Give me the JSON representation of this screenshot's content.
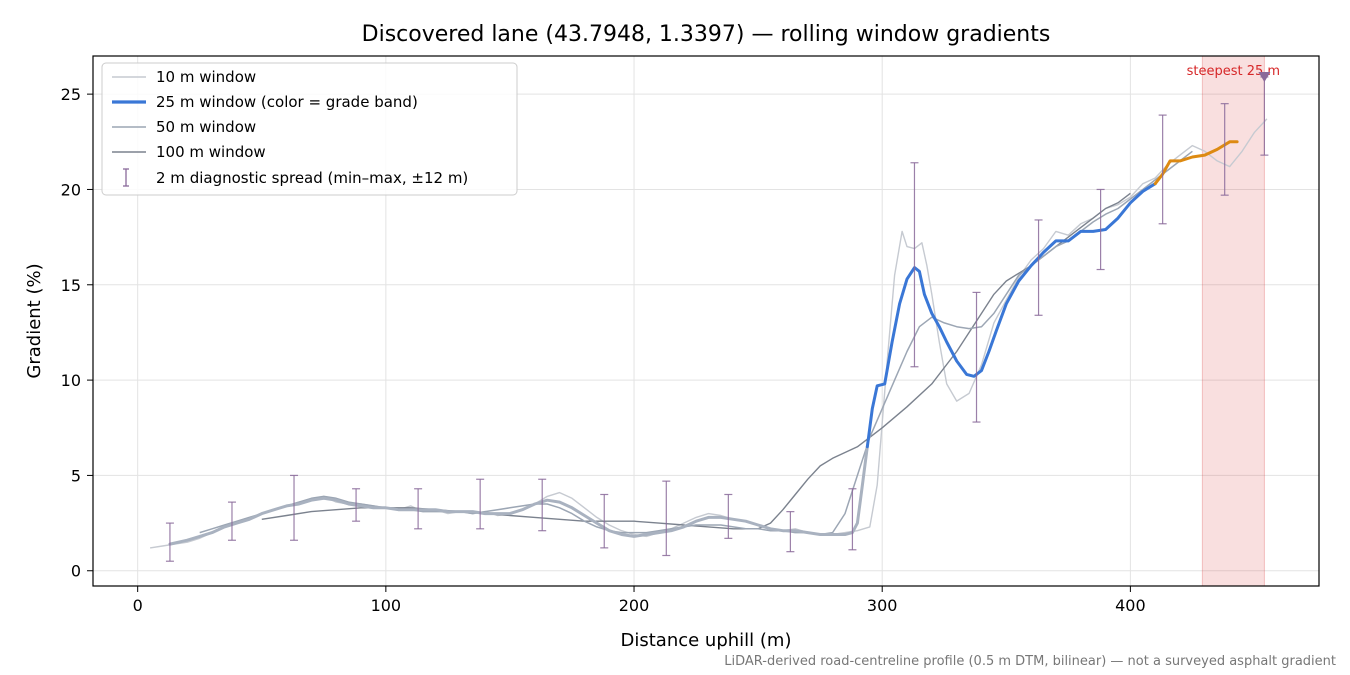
{
  "chart_data": {
    "type": "line",
    "title": "Discovered lane (43.7948, 1.3397) — rolling window gradients",
    "xlabel": "Distance uphill (m)",
    "ylabel": "Gradient (%)",
    "xlim": [
      -18,
      476
    ],
    "ylim": [
      -0.8,
      27
    ],
    "xticks": [
      0,
      100,
      200,
      300,
      400
    ],
    "yticks": [
      0,
      5,
      10,
      15,
      20,
      25
    ],
    "xtick_labels": [
      "0",
      "100",
      "200",
      "300",
      "400"
    ],
    "ytick_labels": [
      "0",
      "5",
      "10",
      "15",
      "20",
      "25"
    ],
    "grid": true,
    "legend_position": "top-left",
    "footnote": "LiDAR-derived road-centreline profile (0.5 m DTM, bilinear) — not a surveyed asphalt gradient",
    "highlight_region": {
      "x0": 429,
      "x1": 454,
      "label": "steepest 25 m",
      "color": "#d62728"
    },
    "steepest_marker": {
      "x": 454,
      "y": 25.9,
      "color": "#8a6a9a"
    },
    "grade_band_colors": {
      "low": "#a9b2c0",
      "mid": "#3a77d6",
      "high": "#dd8a12"
    },
    "series": [
      {
        "name": "10 m window",
        "color": "#c6cad1",
        "x": [
          5,
          10,
          15,
          20,
          25,
          30,
          35,
          40,
          45,
          50,
          55,
          60,
          65,
          70,
          75,
          80,
          85,
          90,
          95,
          100,
          105,
          110,
          115,
          120,
          125,
          130,
          135,
          140,
          145,
          150,
          155,
          160,
          165,
          170,
          175,
          180,
          185,
          190,
          195,
          200,
          205,
          210,
          215,
          220,
          225,
          230,
          235,
          240,
          245,
          250,
          255,
          260,
          265,
          270,
          275,
          280,
          285,
          290,
          295,
          298,
          302,
          305,
          308,
          310,
          313,
          316,
          318,
          320,
          323,
          326,
          330,
          335,
          340,
          345,
          350,
          355,
          360,
          365,
          370,
          375,
          380,
          385,
          390,
          395,
          400,
          405,
          410,
          415,
          420,
          425,
          430,
          435,
          440,
          445,
          450,
          455
        ],
        "y": [
          1.2,
          1.3,
          1.4,
          1.5,
          1.7,
          2.0,
          2.3,
          2.5,
          2.7,
          3.0,
          3.2,
          3.4,
          3.6,
          3.7,
          3.9,
          3.6,
          3.5,
          3.5,
          3.4,
          3.3,
          3.2,
          3.4,
          3.1,
          3.2,
          3.0,
          3.1,
          3.0,
          3.1,
          2.9,
          3.0,
          3.2,
          3.5,
          3.9,
          4.1,
          3.8,
          3.3,
          2.8,
          2.4,
          2.1,
          1.9,
          1.8,
          2.0,
          2.2,
          2.5,
          2.8,
          3.0,
          2.9,
          2.7,
          2.6,
          2.4,
          2.2,
          2.1,
          2.2,
          2.0,
          1.9,
          1.9,
          2.0,
          2.1,
          2.3,
          4.5,
          11.0,
          15.5,
          17.8,
          17.0,
          16.9,
          17.2,
          16.0,
          14.5,
          12.0,
          9.8,
          8.9,
          9.3,
          10.8,
          13.0,
          14.2,
          15.4,
          16.3,
          16.9,
          17.8,
          17.6,
          18.2,
          18.5,
          19.0,
          19.2,
          19.6,
          20.3,
          20.6,
          21.3,
          21.8,
          22.3,
          22.0,
          21.5,
          21.2,
          22.0,
          23.0,
          23.7
        ]
      },
      {
        "name": "25 m window (color = grade band)",
        "color": "#3a77d6",
        "x": [
          13,
          20,
          25,
          30,
          35,
          40,
          45,
          50,
          55,
          60,
          65,
          70,
          75,
          80,
          85,
          90,
          95,
          100,
          105,
          110,
          115,
          120,
          125,
          130,
          135,
          140,
          145,
          150,
          155,
          160,
          165,
          170,
          175,
          180,
          185,
          190,
          195,
          200,
          205,
          210,
          215,
          220,
          225,
          230,
          235,
          240,
          245,
          250,
          255,
          260,
          265,
          270,
          275,
          280,
          285,
          288,
          290,
          292,
          294,
          296,
          298,
          301,
          304,
          307,
          310,
          313,
          315,
          317,
          320,
          323,
          326,
          330,
          334,
          337,
          340,
          343,
          346,
          350,
          355,
          360,
          365,
          370,
          375,
          380,
          385,
          390,
          395,
          400,
          405,
          410,
          413,
          416,
          420,
          425,
          430,
          435,
          440,
          443
        ],
        "y": [
          1.4,
          1.6,
          1.8,
          2.0,
          2.3,
          2.5,
          2.7,
          3.0,
          3.2,
          3.4,
          3.5,
          3.7,
          3.8,
          3.7,
          3.5,
          3.4,
          3.3,
          3.3,
          3.2,
          3.2,
          3.2,
          3.2,
          3.1,
          3.1,
          3.1,
          3.0,
          3.0,
          3.0,
          3.2,
          3.5,
          3.7,
          3.6,
          3.3,
          2.9,
          2.5,
          2.1,
          1.9,
          1.8,
          1.9,
          2.0,
          2.1,
          2.3,
          2.6,
          2.8,
          2.8,
          2.7,
          2.6,
          2.4,
          2.2,
          2.1,
          2.1,
          2.0,
          1.9,
          1.9,
          1.9,
          2.0,
          2.5,
          4.5,
          6.5,
          8.5,
          9.7,
          9.8,
          12.0,
          14.0,
          15.3,
          15.9,
          15.7,
          14.5,
          13.5,
          12.8,
          12.0,
          11.0,
          10.3,
          10.2,
          10.5,
          11.5,
          12.6,
          14.0,
          15.2,
          16.0,
          16.7,
          17.3,
          17.3,
          17.8,
          17.8,
          17.9,
          18.5,
          19.3,
          19.9,
          20.3,
          20.8,
          21.5,
          21.5,
          21.7,
          21.8,
          22.1,
          22.5,
          22.5
        ]
      },
      {
        "name": "50 m window",
        "color": "#9ca6b4",
        "x": [
          25,
          30,
          35,
          40,
          45,
          50,
          55,
          60,
          65,
          70,
          75,
          80,
          85,
          90,
          95,
          100,
          105,
          110,
          115,
          120,
          125,
          130,
          135,
          140,
          145,
          150,
          155,
          160,
          165,
          170,
          175,
          180,
          185,
          190,
          195,
          200,
          205,
          210,
          215,
          220,
          225,
          230,
          235,
          240,
          245,
          250,
          255,
          260,
          265,
          270,
          275,
          280,
          285,
          290,
          295,
          300,
          305,
          310,
          315,
          320,
          325,
          330,
          335,
          340,
          345,
          350,
          355,
          360,
          365,
          370,
          375,
          380,
          385,
          390,
          395,
          400,
          405,
          410,
          415,
          420,
          425
        ],
        "y": [
          2.0,
          2.2,
          2.4,
          2.6,
          2.8,
          3.0,
          3.2,
          3.4,
          3.6,
          3.8,
          3.9,
          3.8,
          3.6,
          3.5,
          3.4,
          3.3,
          3.2,
          3.2,
          3.1,
          3.1,
          3.1,
          3.1,
          3.0,
          3.1,
          3.2,
          3.3,
          3.4,
          3.5,
          3.5,
          3.3,
          3.0,
          2.6,
          2.3,
          2.1,
          2.0,
          2.0,
          2.0,
          2.1,
          2.2,
          2.3,
          2.4,
          2.4,
          2.4,
          2.3,
          2.2,
          2.2,
          2.1,
          2.1,
          2.0,
          2.0,
          1.9,
          2.0,
          3.0,
          5.0,
          7.0,
          8.5,
          10.0,
          11.5,
          12.8,
          13.3,
          13.0,
          12.8,
          12.7,
          12.8,
          13.5,
          14.5,
          15.5,
          16.0,
          16.5,
          17.0,
          17.3,
          17.8,
          18.3,
          18.7,
          19.0,
          19.5,
          20.0,
          20.5,
          21.0,
          21.5,
          22.0
        ]
      },
      {
        "name": "100 m window",
        "color": "#7b828e",
        "x": [
          50,
          60,
          70,
          80,
          90,
          100,
          110,
          120,
          130,
          140,
          150,
          160,
          170,
          180,
          190,
          200,
          210,
          220,
          230,
          240,
          250,
          255,
          260,
          265,
          270,
          275,
          280,
          285,
          290,
          295,
          300,
          310,
          320,
          330,
          340,
          345,
          350,
          355,
          360,
          365,
          370,
          375,
          380,
          385,
          390,
          395,
          400
        ],
        "y": [
          2.7,
          2.9,
          3.1,
          3.2,
          3.3,
          3.3,
          3.3,
          3.2,
          3.1,
          3.0,
          2.9,
          2.8,
          2.7,
          2.6,
          2.6,
          2.6,
          2.5,
          2.4,
          2.3,
          2.2,
          2.2,
          2.5,
          3.2,
          4.0,
          4.8,
          5.5,
          5.9,
          6.2,
          6.5,
          7.0,
          7.5,
          8.6,
          9.8,
          11.5,
          13.5,
          14.5,
          15.2,
          15.6,
          16.0,
          16.5,
          17.0,
          17.5,
          18.0,
          18.5,
          19.0,
          19.3,
          19.8
        ]
      }
    ],
    "diagnostic_spread": {
      "name": "2 m diagnostic spread (min–max, ±12 m)",
      "color": "#8a6a9a",
      "x": [
        13,
        38,
        63,
        88,
        113,
        138,
        163,
        188,
        213,
        238,
        263,
        288,
        313,
        338,
        363,
        388,
        413,
        438,
        454
      ],
      "ymin": [
        0.5,
        1.6,
        1.6,
        2.6,
        2.2,
        2.2,
        2.1,
        1.2,
        0.8,
        1.7,
        1.0,
        1.1,
        10.7,
        7.8,
        13.4,
        15.8,
        18.2,
        19.7,
        21.8
      ],
      "ymax": [
        2.5,
        3.6,
        5.0,
        4.3,
        4.3,
        4.8,
        4.8,
        4.0,
        4.7,
        4.0,
        3.1,
        4.3,
        21.4,
        14.6,
        18.4,
        20.0,
        23.9,
        24.5,
        25.9
      ]
    }
  }
}
